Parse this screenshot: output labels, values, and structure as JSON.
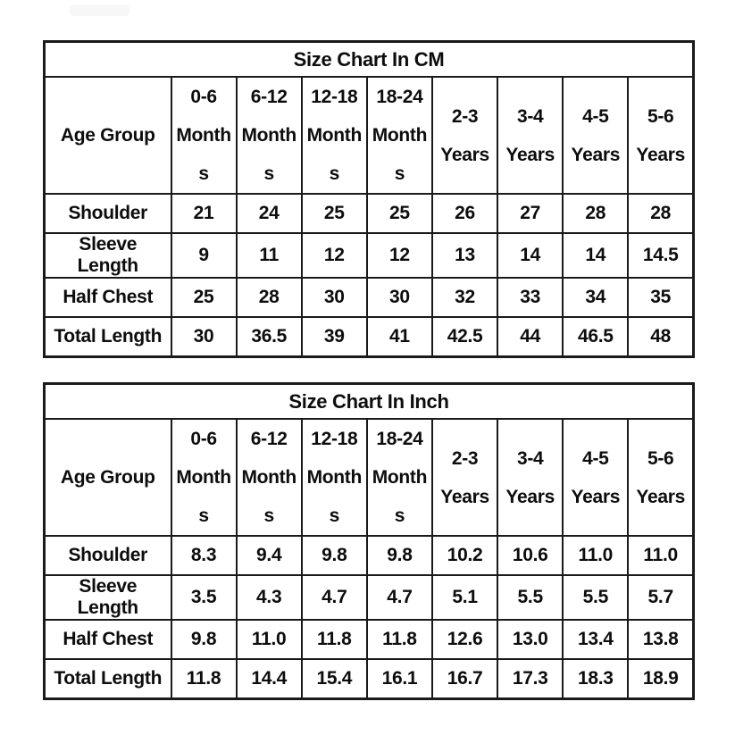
{
  "page": {
    "background": "#ffffff",
    "text_color": "#0d0d0d",
    "border_color": "#1a1a1a",
    "watermark_color": "#f7f7f7"
  },
  "tables": [
    {
      "title": "Size Chart In CM",
      "header": {
        "label": "Age Group",
        "columns": [
          [
            "0-6",
            "Month",
            "s"
          ],
          [
            "6-12",
            "Month",
            "s"
          ],
          [
            "12-18",
            "Month",
            "s"
          ],
          [
            "18-24",
            "Month",
            "s"
          ],
          [
            "2-3",
            "Years"
          ],
          [
            "3-4",
            "Years"
          ],
          [
            "4-5",
            "Years"
          ],
          [
            "5-6",
            "Years"
          ]
        ]
      },
      "rows": [
        {
          "label": "Shoulder",
          "values": [
            "21",
            "24",
            "25",
            "25",
            "26",
            "27",
            "28",
            "28"
          ]
        },
        {
          "label": "Sleeve Length",
          "values": [
            "9",
            "11",
            "12",
            "12",
            "13",
            "14",
            "14",
            "14.5"
          ]
        },
        {
          "label": "Half Chest",
          "values": [
            "25",
            "28",
            "30",
            "30",
            "32",
            "33",
            "34",
            "35"
          ]
        },
        {
          "label": "Total Length",
          "values": [
            "30",
            "36.5",
            "39",
            "41",
            "42.5",
            "44",
            "46.5",
            "48"
          ]
        }
      ]
    },
    {
      "title": "Size Chart In Inch",
      "header": {
        "label": "Age Group",
        "columns": [
          [
            "0-6",
            "Month",
            "s"
          ],
          [
            "6-12",
            "Month",
            "s"
          ],
          [
            "12-18",
            "Month",
            "s"
          ],
          [
            "18-24",
            "Month",
            "s"
          ],
          [
            "2-3",
            "Years"
          ],
          [
            "3-4",
            "Years"
          ],
          [
            "4-5",
            "Years"
          ],
          [
            "5-6",
            "Years"
          ]
        ]
      },
      "rows": [
        {
          "label": "Shoulder",
          "values": [
            "8.3",
            "9.4",
            "9.8",
            "9.8",
            "10.2",
            "10.6",
            "11.0",
            "11.0"
          ]
        },
        {
          "label": "Sleeve Length",
          "values": [
            "3.5",
            "4.3",
            "4.7",
            "4.7",
            "5.1",
            "5.5",
            "5.5",
            "5.7"
          ]
        },
        {
          "label": "Half Chest",
          "values": [
            "9.8",
            "11.0",
            "11.8",
            "11.8",
            "12.6",
            "13.0",
            "13.4",
            "13.8"
          ]
        },
        {
          "label": "Total Length",
          "values": [
            "11.8",
            "14.4",
            "15.4",
            "16.1",
            "16.7",
            "17.3",
            "18.3",
            "18.9"
          ]
        }
      ]
    }
  ]
}
